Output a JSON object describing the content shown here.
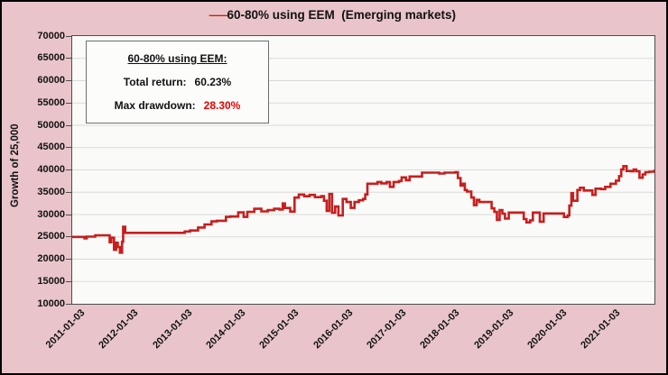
{
  "title": {
    "legend_marker": "—",
    "text": "60-80% using EEM  (Emerging markets)"
  },
  "annotation": {
    "heading": "60-80% using EEM:",
    "total_return_label": "Total return:",
    "total_return_value": "60.23%",
    "max_drawdown_label": "Max drawdown:",
    "max_drawdown_value": "28.30%"
  },
  "axes": {
    "y_title": "Growth of 25,000",
    "y_ticks": [
      "70000",
      "65000",
      "60000",
      "55000",
      "50000",
      "45000",
      "40000",
      "35000",
      "30000",
      "25000",
      "20000",
      "15000",
      "10000"
    ],
    "x_ticks": [
      "2011-01-03",
      "2012-01-03",
      "2013-01-03",
      "2014-01-03",
      "2015-01-03",
      "2016-01-03",
      "2017-01-03",
      "2018-01-03",
      "2019-01-03",
      "2020-01-03",
      "2021-01-03"
    ]
  },
  "colors": {
    "background": "#E9C5CB",
    "plot_background": "#FAFAF8",
    "gridline": "#D9D9D9",
    "line": "#C81E1E",
    "negative_text": "#E60000",
    "frame": "#4D4D4D",
    "outer_border": "#000000"
  },
  "chart_data": {
    "type": "line",
    "title": "60-80% using EEM  (Emerging markets)",
    "xlabel": "",
    "ylabel": "Growth of 25,000",
    "x_range": [
      2010.85,
      2021.72
    ],
    "ylim": [
      10000,
      70000
    ],
    "y_tick_step": 5000,
    "x_tick_start": 2011,
    "x_tick_interval": 1,
    "grid": "horizontal",
    "legend_position": "top-center",
    "interpolation": "step-after",
    "stats": {
      "total_return_pct": 60.23,
      "max_drawdown_pct": 28.3,
      "start_value": 25000,
      "end_value": 40057
    },
    "series": [
      {
        "name": "60-80% using EEM (Emerging markets)",
        "color": "#C81E1E",
        "points": [
          [
            2010.85,
            25000
          ],
          [
            2011.05,
            25000
          ],
          [
            2011.08,
            24650
          ],
          [
            2011.12,
            25050
          ],
          [
            2011.25,
            25050
          ],
          [
            2011.28,
            25350
          ],
          [
            2011.5,
            25350
          ],
          [
            2011.55,
            23800
          ],
          [
            2011.58,
            24800
          ],
          [
            2011.63,
            22100
          ],
          [
            2011.67,
            23700
          ],
          [
            2011.7,
            22700
          ],
          [
            2011.74,
            21450
          ],
          [
            2011.78,
            23900
          ],
          [
            2011.8,
            27250
          ],
          [
            2011.84,
            25900
          ],
          [
            2012.9,
            25900
          ],
          [
            2012.95,
            26200
          ],
          [
            2013.05,
            26430
          ],
          [
            2013.15,
            26430
          ],
          [
            2013.2,
            27100
          ],
          [
            2013.32,
            27780
          ],
          [
            2013.45,
            28460
          ],
          [
            2013.55,
            28600
          ],
          [
            2013.72,
            29470
          ],
          [
            2013.8,
            29560
          ],
          [
            2013.95,
            30480
          ],
          [
            2014.05,
            29470
          ],
          [
            2014.12,
            30600
          ],
          [
            2014.25,
            31290
          ],
          [
            2014.38,
            30700
          ],
          [
            2014.5,
            31000
          ],
          [
            2014.62,
            31300
          ],
          [
            2014.72,
            31130
          ],
          [
            2014.78,
            32480
          ],
          [
            2014.82,
            31470
          ],
          [
            2014.92,
            30660
          ],
          [
            2015.0,
            33800
          ],
          [
            2015.08,
            34490
          ],
          [
            2015.18,
            34100
          ],
          [
            2015.28,
            34400
          ],
          [
            2015.38,
            33900
          ],
          [
            2015.5,
            34150
          ],
          [
            2015.55,
            33100
          ],
          [
            2015.6,
            30800
          ],
          [
            2015.65,
            34600
          ],
          [
            2015.7,
            30400
          ],
          [
            2015.76,
            31800
          ],
          [
            2015.82,
            29800
          ],
          [
            2015.9,
            33500
          ],
          [
            2015.97,
            32800
          ],
          [
            2016.05,
            31500
          ],
          [
            2016.12,
            32800
          ],
          [
            2016.2,
            33200
          ],
          [
            2016.28,
            33500
          ],
          [
            2016.32,
            34500
          ],
          [
            2016.36,
            36900
          ],
          [
            2016.5,
            36900
          ],
          [
            2016.55,
            37300
          ],
          [
            2016.62,
            37000
          ],
          [
            2016.72,
            37300
          ],
          [
            2016.78,
            36200
          ],
          [
            2016.85,
            37300
          ],
          [
            2016.95,
            37520
          ],
          [
            2017.0,
            38330
          ],
          [
            2017.08,
            37700
          ],
          [
            2017.15,
            38530
          ],
          [
            2017.3,
            38530
          ],
          [
            2017.38,
            39390
          ],
          [
            2017.6,
            39390
          ],
          [
            2017.7,
            39200
          ],
          [
            2017.8,
            39390
          ],
          [
            2017.95,
            39390
          ],
          [
            2018.0,
            39500
          ],
          [
            2018.05,
            38190
          ],
          [
            2018.1,
            36510
          ],
          [
            2018.14,
            36900
          ],
          [
            2018.18,
            35500
          ],
          [
            2018.22,
            35160
          ],
          [
            2018.3,
            33810
          ],
          [
            2018.35,
            32100
          ],
          [
            2018.4,
            33300
          ],
          [
            2018.45,
            32800
          ],
          [
            2018.6,
            32800
          ],
          [
            2018.68,
            31400
          ],
          [
            2018.73,
            30600
          ],
          [
            2018.78,
            28800
          ],
          [
            2018.83,
            31000
          ],
          [
            2018.88,
            30200
          ],
          [
            2018.93,
            29100
          ],
          [
            2019.0,
            30450
          ],
          [
            2019.22,
            30450
          ],
          [
            2019.28,
            29000
          ],
          [
            2019.33,
            28250
          ],
          [
            2019.4,
            28700
          ],
          [
            2019.45,
            30450
          ],
          [
            2019.52,
            30450
          ],
          [
            2019.58,
            28400
          ],
          [
            2019.65,
            30250
          ],
          [
            2019.95,
            30250
          ],
          [
            2020.03,
            29450
          ],
          [
            2020.1,
            29800
          ],
          [
            2020.13,
            32000
          ],
          [
            2020.17,
            34800
          ],
          [
            2020.2,
            33100
          ],
          [
            2020.28,
            35500
          ],
          [
            2020.33,
            36000
          ],
          [
            2020.4,
            35400
          ],
          [
            2020.52,
            35400
          ],
          [
            2020.56,
            34400
          ],
          [
            2020.62,
            35800
          ],
          [
            2020.72,
            35700
          ],
          [
            2020.8,
            36200
          ],
          [
            2020.9,
            36900
          ],
          [
            2021.0,
            37600
          ],
          [
            2021.06,
            38600
          ],
          [
            2021.1,
            40100
          ],
          [
            2021.14,
            40850
          ],
          [
            2021.2,
            39750
          ],
          [
            2021.28,
            39700
          ],
          [
            2021.33,
            40100
          ],
          [
            2021.38,
            39700
          ],
          [
            2021.44,
            38250
          ],
          [
            2021.5,
            39000
          ],
          [
            2021.55,
            39500
          ],
          [
            2021.62,
            39600
          ],
          [
            2021.72,
            40057
          ]
        ]
      }
    ]
  }
}
